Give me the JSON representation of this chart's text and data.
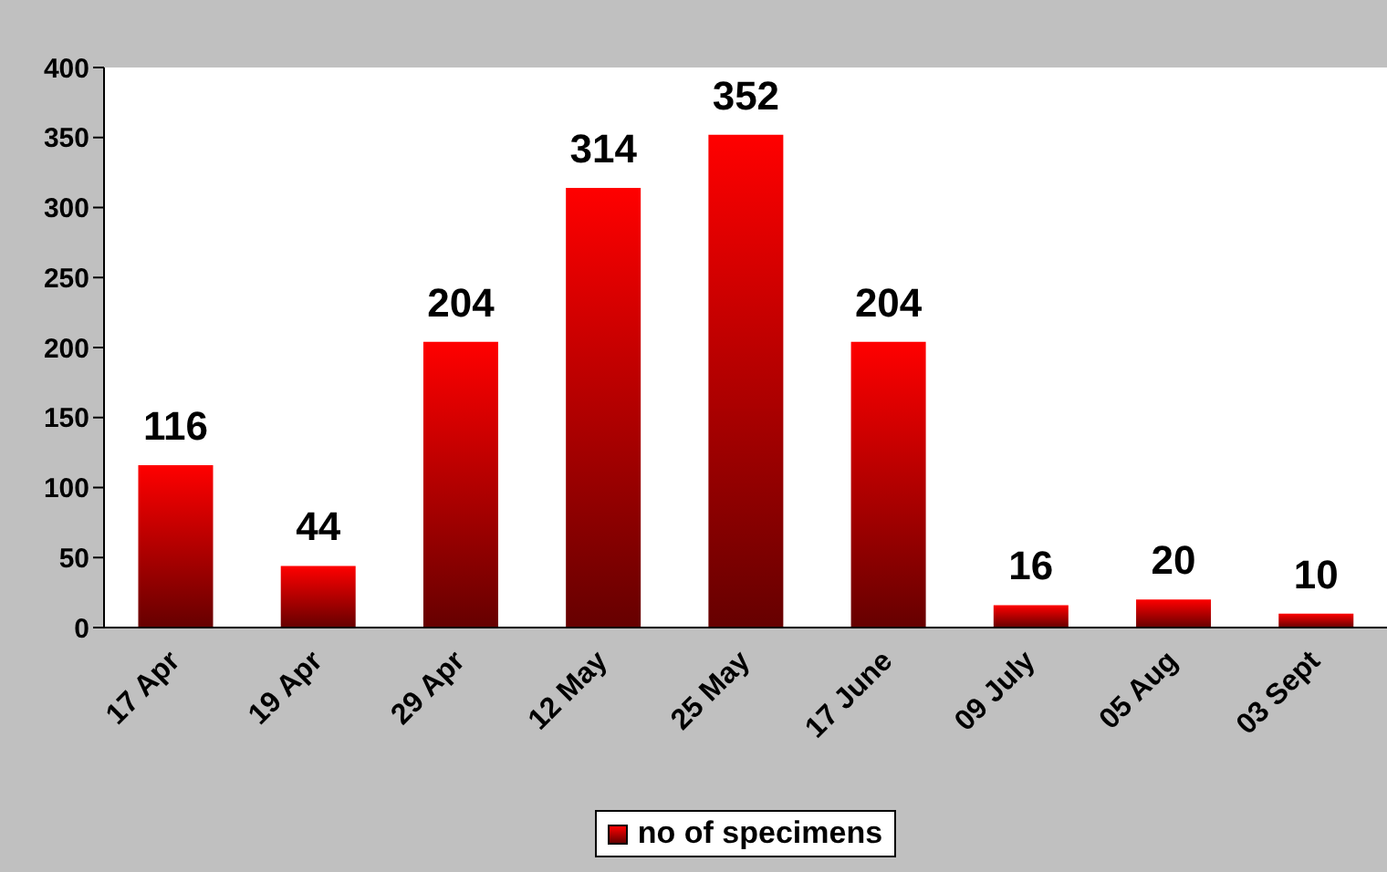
{
  "chart_data": {
    "type": "bar",
    "categories": [
      "17 Apr",
      "19 Apr",
      "29 Apr",
      "12 May",
      "25 May",
      "17 June",
      "09 July",
      "05 Aug",
      "03 Sept"
    ],
    "series": [
      {
        "name": "no of specimens",
        "color": "#ff0000",
        "values": [
          116,
          44,
          204,
          314,
          352,
          204,
          16,
          20,
          10
        ]
      }
    ],
    "ylim": [
      0,
      400
    ],
    "yticks": [
      0,
      50,
      100,
      150,
      200,
      250,
      300,
      350,
      400
    ],
    "data_labels": true,
    "legend": "bottom"
  }
}
